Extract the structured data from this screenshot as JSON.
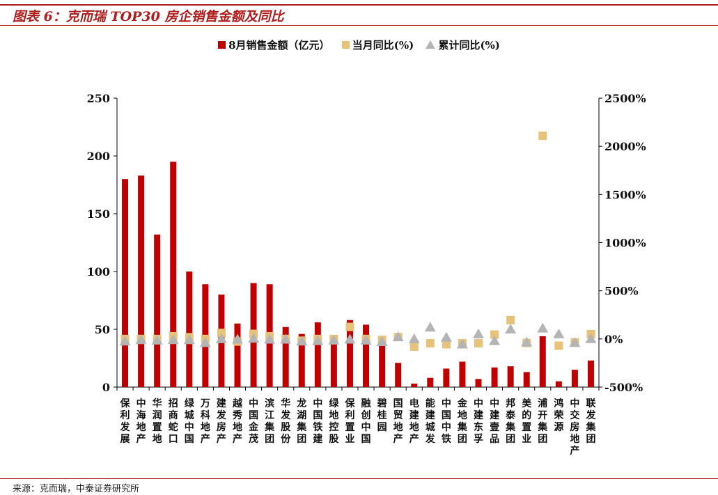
{
  "figure_title": "图表 6：克而瑞 TOP30 房企销售金额及同比",
  "source": "来源：克而瑞，中泰证券研究所",
  "colors": {
    "bar": "#c00000",
    "monthly": "#e6c27a",
    "cumulative": "#b4b4b4",
    "rule": "#b01c1c"
  },
  "legend": {
    "bar": "8月销售金额（亿元）",
    "monthly": "当月同比(%)",
    "cumulative": "累计同比(%)"
  },
  "chart_data": {
    "type": "bar",
    "categories": [
      "保利发展",
      "中海地产",
      "华润置地",
      "招商蛇口",
      "绿城中国",
      "万科地产",
      "建发房产",
      "越秀地产",
      "中国金茂",
      "滨江集团",
      "华发股份",
      "龙湖集团",
      "中国铁建",
      "绿地控股",
      "保利置业",
      "融创中国",
      "碧桂园",
      "国贸地产",
      "电建地产",
      "能建城发",
      "中国中铁",
      "金地集团",
      "中建东孚",
      "中建壹品",
      "邦泰集团",
      "美的置业",
      "浦开集团",
      "鸿荣源",
      "中交房地产",
      "联发集团"
    ],
    "series": [
      {
        "name": "8月销售金额（亿元）",
        "type": "bar",
        "axis": "left",
        "values": [
          180,
          183,
          132,
          195,
          100,
          89,
          80,
          55,
          90,
          89,
          52,
          46,
          56,
          41,
          58,
          54,
          41,
          21,
          3,
          8,
          16,
          22,
          7,
          17,
          18,
          13,
          44,
          5,
          15,
          23
        ]
      },
      {
        "name": "当月同比(%)",
        "type": "scatter",
        "marker": "square",
        "axis": "right",
        "values": [
          0,
          0,
          0,
          28,
          18,
          0,
          63,
          -27,
          53,
          28,
          0,
          -18,
          0,
          0,
          125,
          0,
          -10,
          20,
          -80,
          -45,
          -55,
          -45,
          -45,
          45,
          195,
          -42,
          2110,
          -70,
          -35,
          50
        ]
      },
      {
        "name": "累计同比(%)",
        "type": "scatter",
        "marker": "triangle",
        "axis": "right",
        "values": [
          -25,
          -10,
          -15,
          -10,
          -10,
          -40,
          0,
          -5,
          5,
          -5,
          -5,
          -25,
          -20,
          -15,
          -5,
          -15,
          -30,
          20,
          0,
          120,
          15,
          -55,
          50,
          -20,
          100,
          -35,
          110,
          50,
          -40,
          0
        ]
      }
    ],
    "y_left": {
      "min": 0,
      "max": 250,
      "ticks": [
        0,
        50,
        100,
        150,
        200,
        250
      ]
    },
    "y_right": {
      "min": -500,
      "max": 2500,
      "ticks": [
        "-500%",
        "0%",
        "500%",
        "1000%",
        "1500%",
        "2000%",
        "2500%"
      ]
    },
    "legend_position": "top-center",
    "grid": false
  }
}
